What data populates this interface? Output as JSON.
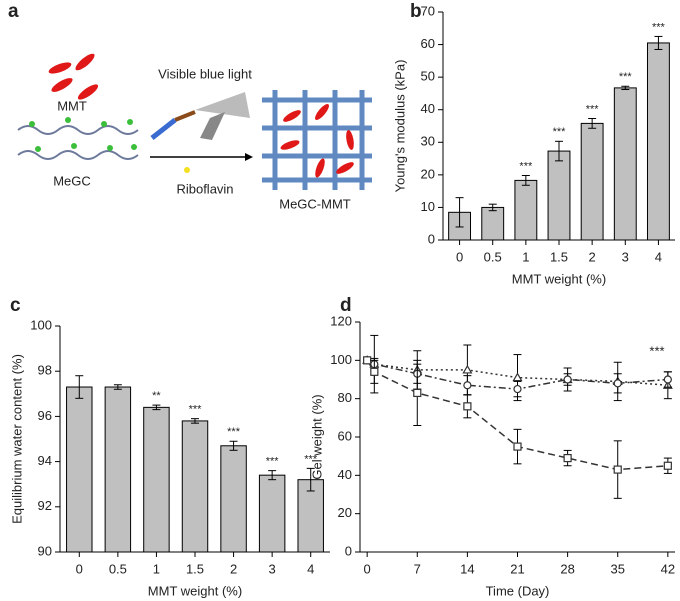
{
  "diagram": {
    "panel_label": "a",
    "mmt": "MMT",
    "megc": "MeGC",
    "light": "Visible blue light",
    "riboflavin": "Riboflavin",
    "product": "MeGC-MMT"
  },
  "chart_data": [
    {
      "type": "bar",
      "panel_label": "b",
      "ylabel": "Young's modulus (kPa)",
      "xlabel": "MMT weight (%)",
      "categories": [
        "0",
        "0.5",
        "1",
        "1.5",
        "2",
        "3",
        "4"
      ],
      "values": [
        8.5,
        10,
        18.3,
        27.3,
        35.8,
        46.7,
        60.5
      ],
      "errors": [
        4.5,
        1,
        1.5,
        3,
        1.5,
        0.5,
        2
      ],
      "significance": [
        null,
        null,
        "***",
        "***",
        "***",
        "***",
        "***"
      ],
      "color": "#c0c0c0",
      "ylim": [
        0,
        70
      ],
      "yticks": [
        0,
        10,
        20,
        30,
        40,
        50,
        60,
        70
      ]
    },
    {
      "type": "bar",
      "panel_label": "c",
      "ylabel": "Equilibrium water content (%)",
      "xlabel": "MMT weight (%)",
      "categories": [
        "0",
        "0.5",
        "1",
        "1.5",
        "2",
        "3",
        "4"
      ],
      "values": [
        97.3,
        97.3,
        96.4,
        95.8,
        94.7,
        93.4,
        93.2
      ],
      "errors": [
        0.5,
        0.1,
        0.1,
        0.1,
        0.2,
        0.2,
        0.5
      ],
      "significance": [
        null,
        null,
        "**",
        "***",
        "***",
        "***",
        "***"
      ],
      "color": "#c0c0c0",
      "ylim": [
        90,
        100
      ],
      "yticks": [
        90,
        92,
        94,
        96,
        98,
        100
      ]
    },
    {
      "type": "line",
      "panel_label": "d",
      "ylabel": "Gel weight (%)",
      "xlabel": "Time (Day)",
      "annotation": "***",
      "x": [
        0,
        1,
        7,
        14,
        21,
        28,
        35,
        42
      ],
      "xlim": [
        -1,
        43
      ],
      "xticks": [
        0,
        7,
        14,
        21,
        28,
        35,
        42
      ],
      "ylim": [
        0,
        120
      ],
      "yticks": [
        0,
        20,
        40,
        60,
        80,
        100,
        120
      ],
      "series": [
        {
          "marker": "triangle",
          "dash": "dotted",
          "color": "#333333",
          "values": [
            100,
            98,
            95,
            95,
            91,
            90,
            89,
            87
          ],
          "errors": [
            0,
            15,
            10,
            13,
            12,
            6,
            10,
            7
          ]
        },
        {
          "marker": "circle",
          "dash": "dashdot",
          "color": "#333333",
          "values": [
            100,
            98,
            93,
            87,
            85,
            90,
            88,
            90
          ],
          "errors": [
            0,
            3,
            5,
            5,
            4,
            3,
            5,
            4
          ]
        },
        {
          "marker": "square",
          "dash": "dashed",
          "color": "#333333",
          "values": [
            100,
            94,
            83,
            76,
            55,
            49,
            43,
            45
          ],
          "errors": [
            0,
            6,
            17,
            6,
            9,
            4,
            15,
            4
          ]
        }
      ]
    }
  ]
}
